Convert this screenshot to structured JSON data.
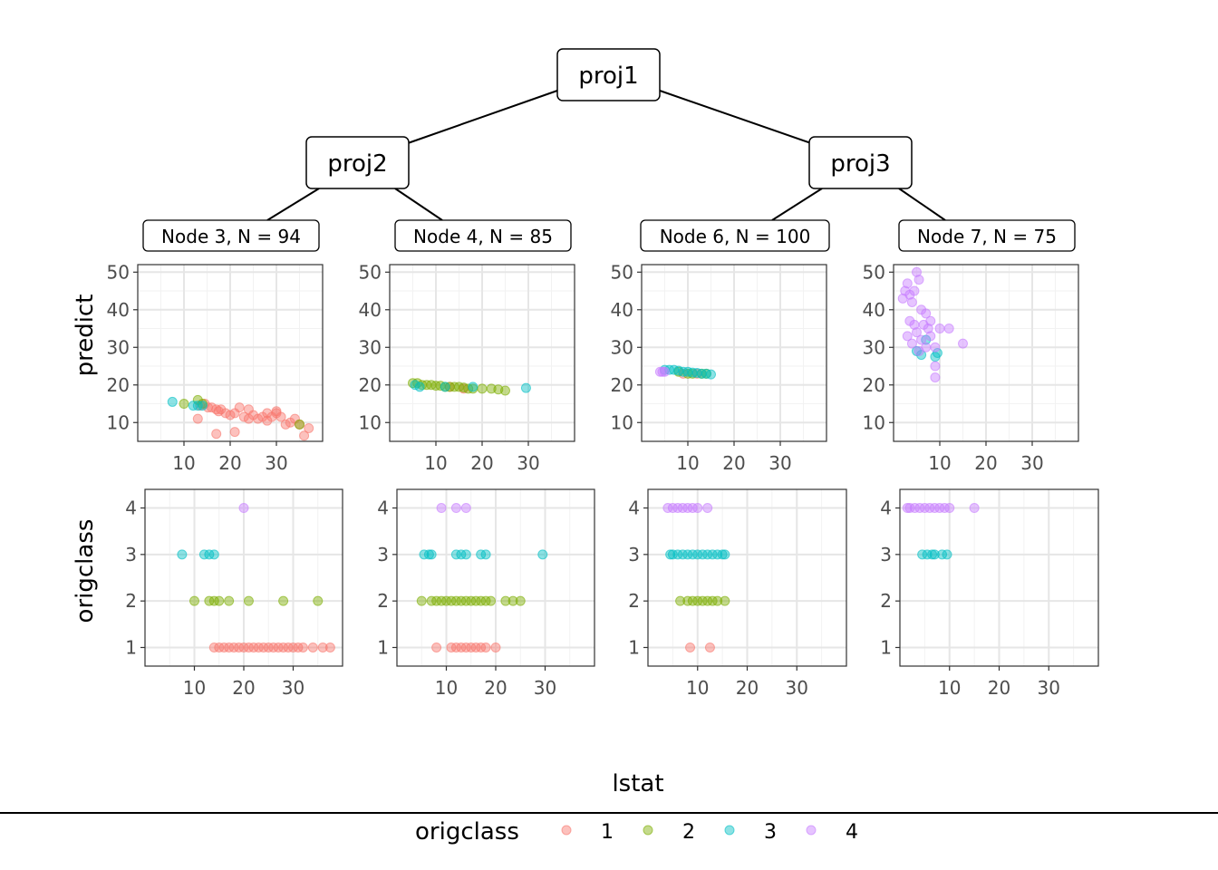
{
  "tree": {
    "nodes": [
      {
        "id": "proj1",
        "label": "proj1"
      },
      {
        "id": "proj2",
        "label": "proj2"
      },
      {
        "id": "proj3",
        "label": "proj3"
      }
    ],
    "leaves": [
      {
        "id": "node3",
        "label": "Node 3, N = 94"
      },
      {
        "id": "node4",
        "label": "Node 4, N = 85"
      },
      {
        "id": "node6",
        "label": "Node 6, N = 100"
      },
      {
        "id": "node7",
        "label": "Node 7, N = 75"
      }
    ]
  },
  "labels": {
    "ylabel_top": "predict",
    "ylabel_bottom": "origclass",
    "xlabel": "lstat"
  },
  "legend": {
    "title": "origclass",
    "items": [
      {
        "label": "1",
        "color": "#F8766D"
      },
      {
        "label": "2",
        "color": "#7CAE00"
      },
      {
        "label": "3",
        "color": "#00BFC4"
      },
      {
        "label": "4",
        "color": "#C77CFF"
      }
    ]
  },
  "chart_data": [
    {
      "type": "scatter",
      "panel": "Node 3, N = 94",
      "row": "predict",
      "xlabel": "lstat",
      "ylabel": "predict",
      "xlim": [
        0,
        40
      ],
      "ylim": [
        5,
        52
      ],
      "xticks": [
        "10",
        "20",
        "30"
      ],
      "yticks": [
        "10",
        "20",
        "30",
        "40",
        "50"
      ],
      "grid": true,
      "series": [
        {
          "name": "1",
          "x": [
            13.5,
            14.5,
            15.2,
            16,
            17,
            17.5,
            18,
            19,
            20,
            21,
            22,
            23,
            24,
            25,
            26,
            27,
            28,
            29,
            30,
            31,
            33,
            34,
            35,
            37,
            13,
            17,
            21,
            24,
            28,
            30,
            32,
            36
          ],
          "y": [
            14.5,
            15,
            14,
            14,
            13.5,
            13,
            13.5,
            12.5,
            12,
            12.5,
            14,
            11.5,
            13.5,
            12,
            11,
            11.5,
            12.5,
            11.5,
            12.5,
            11.5,
            10,
            11,
            9.5,
            8.5,
            11,
            7,
            7.5,
            11,
            10.5,
            13,
            9.5,
            6.5
          ]
        },
        {
          "name": "2",
          "x": [
            10,
            13,
            14,
            35
          ],
          "y": [
            15,
            16,
            15,
            9.5
          ]
        },
        {
          "name": "3",
          "x": [
            7.5,
            12,
            13,
            14
          ],
          "y": [
            15.5,
            14.5,
            14.5,
            14.5
          ]
        }
      ]
    },
    {
      "type": "scatter",
      "panel": "Node 4, N = 85",
      "row": "predict",
      "xlabel": "lstat",
      "ylabel": "predict",
      "xlim": [
        0,
        40
      ],
      "ylim": [
        5,
        52
      ],
      "xticks": [
        "10",
        "20",
        "30"
      ],
      "yticks": [
        "10",
        "20",
        "30",
        "40",
        "50"
      ],
      "grid": true,
      "series": [
        {
          "name": "1",
          "x": [
            13,
            16
          ],
          "y": [
            19.5,
            19
          ]
        },
        {
          "name": "2",
          "x": [
            5,
            6,
            7,
            8,
            9,
            10,
            11,
            12,
            13,
            14,
            15,
            16,
            17,
            18,
            20,
            22,
            23.5,
            25
          ],
          "y": [
            20.5,
            20.5,
            20,
            20,
            20,
            19.8,
            19.8,
            19.5,
            19.5,
            19.5,
            19.5,
            19.3,
            19,
            19,
            19,
            19,
            18.8,
            18.5
          ]
        },
        {
          "name": "3",
          "x": [
            5.5,
            6.5,
            12,
            18,
            29.5
          ],
          "y": [
            20,
            19.5,
            19.5,
            19.5,
            19.2
          ]
        }
      ]
    },
    {
      "type": "scatter",
      "panel": "Node 6, N = 100",
      "row": "predict",
      "xlabel": "lstat",
      "ylabel": "predict",
      "xlim": [
        0,
        40
      ],
      "ylim": [
        5,
        52
      ],
      "xticks": [
        "10",
        "20",
        "30"
      ],
      "yticks": [
        "10",
        "20",
        "30",
        "40",
        "50"
      ],
      "grid": true,
      "series": [
        {
          "name": "1",
          "x": [
            9,
            12
          ],
          "y": [
            23,
            23
          ]
        },
        {
          "name": "2",
          "x": [
            8,
            10,
            11,
            13,
            14
          ],
          "y": [
            23.5,
            23,
            23,
            23,
            23
          ]
        },
        {
          "name": "3",
          "x": [
            5,
            6,
            7,
            8,
            9,
            10,
            11,
            12,
            13,
            14,
            15
          ],
          "y": [
            24,
            24,
            24,
            23.8,
            23.5,
            23.5,
            23.3,
            23.2,
            23,
            23,
            22.8
          ]
        },
        {
          "name": "4",
          "x": [
            4,
            4.5,
            5
          ],
          "y": [
            23.5,
            23.5,
            23.5
          ]
        }
      ]
    },
    {
      "type": "scatter",
      "panel": "Node 7, N = 75",
      "row": "predict",
      "xlabel": "lstat",
      "ylabel": "predict",
      "xlim": [
        0,
        40
      ],
      "ylim": [
        5,
        52
      ],
      "xticks": [
        "10",
        "20",
        "30"
      ],
      "yticks": [
        "10",
        "20",
        "30",
        "40",
        "50"
      ],
      "grid": true,
      "series": [
        {
          "name": "3",
          "x": [
            5,
            6,
            7,
            9,
            9.5
          ],
          "y": [
            29,
            28,
            32,
            27.5,
            28.5
          ]
        },
        {
          "name": "4",
          "x": [
            2,
            2.5,
            3,
            3.5,
            4,
            4.5,
            5,
            5.5,
            6,
            6.5,
            7,
            7.5,
            8,
            9,
            10,
            12,
            15,
            9,
            9,
            3,
            4,
            5,
            6,
            7,
            8,
            3.5,
            4.5,
            5.5
          ],
          "y": [
            43,
            45,
            47,
            44,
            42,
            45,
            50,
            48,
            40,
            36,
            39,
            35,
            33,
            30,
            35,
            35,
            31,
            25,
            22,
            33,
            31,
            34,
            32,
            30,
            37,
            37,
            36,
            29
          ]
        }
      ]
    },
    {
      "type": "scatter",
      "panel": "Node 3, N = 94",
      "row": "origclass",
      "xlabel": "lstat",
      "ylabel": "origclass",
      "xlim": [
        0,
        40
      ],
      "ylim": [
        0.6,
        4.4
      ],
      "xticks": [
        "10",
        "20",
        "30"
      ],
      "yticks": [
        "1",
        "2",
        "3",
        "4"
      ],
      "grid": true,
      "series": [
        {
          "name": "1",
          "x": [
            14,
            15,
            16,
            17,
            18,
            19,
            20,
            21,
            22,
            23,
            24,
            25,
            26,
            27,
            28,
            29,
            30,
            31,
            32,
            34,
            36,
            37.5
          ],
          "y": [
            1,
            1,
            1,
            1,
            1,
            1,
            1,
            1,
            1,
            1,
            1,
            1,
            1,
            1,
            1,
            1,
            1,
            1,
            1,
            1,
            1,
            1
          ]
        },
        {
          "name": "2",
          "x": [
            10,
            13,
            14,
            15,
            17,
            21,
            28,
            35
          ],
          "y": [
            2,
            2,
            2,
            2,
            2,
            2,
            2,
            2
          ]
        },
        {
          "name": "3",
          "x": [
            7.5,
            12,
            13,
            14
          ],
          "y": [
            3,
            3,
            3,
            3
          ]
        },
        {
          "name": "4",
          "x": [
            20
          ],
          "y": [
            4
          ]
        }
      ]
    },
    {
      "type": "scatter",
      "panel": "Node 4, N = 85",
      "row": "origclass",
      "xlabel": "lstat",
      "ylabel": "origclass",
      "xlim": [
        0,
        40
      ],
      "ylim": [
        0.6,
        4.4
      ],
      "xticks": [
        "10",
        "20",
        "30"
      ],
      "yticks": [
        "1",
        "2",
        "3",
        "4"
      ],
      "grid": true,
      "series": [
        {
          "name": "1",
          "x": [
            8,
            11,
            12,
            13,
            14,
            15,
            16,
            17,
            18,
            20
          ],
          "y": [
            1,
            1,
            1,
            1,
            1,
            1,
            1,
            1,
            1,
            1
          ]
        },
        {
          "name": "2",
          "x": [
            5,
            7,
            8,
            9,
            10,
            11,
            12,
            13,
            14,
            15,
            16,
            17,
            18,
            19,
            22,
            23.5,
            25
          ],
          "y": [
            2,
            2,
            2,
            2,
            2,
            2,
            2,
            2,
            2,
            2,
            2,
            2,
            2,
            2,
            2,
            2,
            2
          ]
        },
        {
          "name": "3",
          "x": [
            5.5,
            6.5,
            7,
            12,
            13,
            14,
            17,
            18,
            29.5
          ],
          "y": [
            3,
            3,
            3,
            3,
            3,
            3,
            3,
            3,
            3
          ]
        },
        {
          "name": "4",
          "x": [
            9,
            12,
            14
          ],
          "y": [
            4,
            4,
            4
          ]
        }
      ]
    },
    {
      "type": "scatter",
      "panel": "Node 6, N = 100",
      "row": "origclass",
      "xlabel": "lstat",
      "ylabel": "origclass",
      "xlim": [
        0,
        40
      ],
      "ylim": [
        0.6,
        4.4
      ],
      "xticks": [
        "10",
        "20",
        "30"
      ],
      "yticks": [
        "1",
        "2",
        "3",
        "4"
      ],
      "grid": true,
      "series": [
        {
          "name": "1",
          "x": [
            8.5,
            12.5
          ],
          "y": [
            1,
            1
          ]
        },
        {
          "name": "2",
          "x": [
            6.5,
            8,
            9,
            10,
            11,
            12,
            13,
            14,
            15.5
          ],
          "y": [
            2,
            2,
            2,
            2,
            2,
            2,
            2,
            2,
            2
          ]
        },
        {
          "name": "3",
          "x": [
            4.5,
            5,
            6,
            7,
            8,
            9,
            10,
            11,
            12,
            13,
            14,
            15,
            15.5
          ],
          "y": [
            3,
            3,
            3,
            3,
            3,
            3,
            3,
            3,
            3,
            3,
            3,
            3,
            3
          ]
        },
        {
          "name": "4",
          "x": [
            4,
            5,
            6,
            7,
            8,
            9,
            10,
            12
          ],
          "y": [
            4,
            4,
            4,
            4,
            4,
            4,
            4,
            4
          ]
        }
      ]
    },
    {
      "type": "scatter",
      "panel": "Node 7, N = 75",
      "row": "origclass",
      "xlabel": "lstat",
      "ylabel": "origclass",
      "xlim": [
        0,
        40
      ],
      "ylim": [
        0.6,
        4.4
      ],
      "xticks": [
        "10",
        "20",
        "30"
      ],
      "yticks": [
        "1",
        "2",
        "3",
        "4"
      ],
      "grid": true,
      "series": [
        {
          "name": "3",
          "x": [
            4.5,
            5.5,
            6.5,
            7,
            8.5,
            9.5
          ],
          "y": [
            3,
            3,
            3,
            3,
            3,
            3
          ]
        },
        {
          "name": "4",
          "x": [
            1.5,
            2,
            3,
            4,
            5,
            6,
            7,
            8,
            9,
            10,
            15
          ],
          "y": [
            4,
            4,
            4,
            4,
            4,
            4,
            4,
            4,
            4,
            4,
            4
          ]
        }
      ]
    }
  ]
}
